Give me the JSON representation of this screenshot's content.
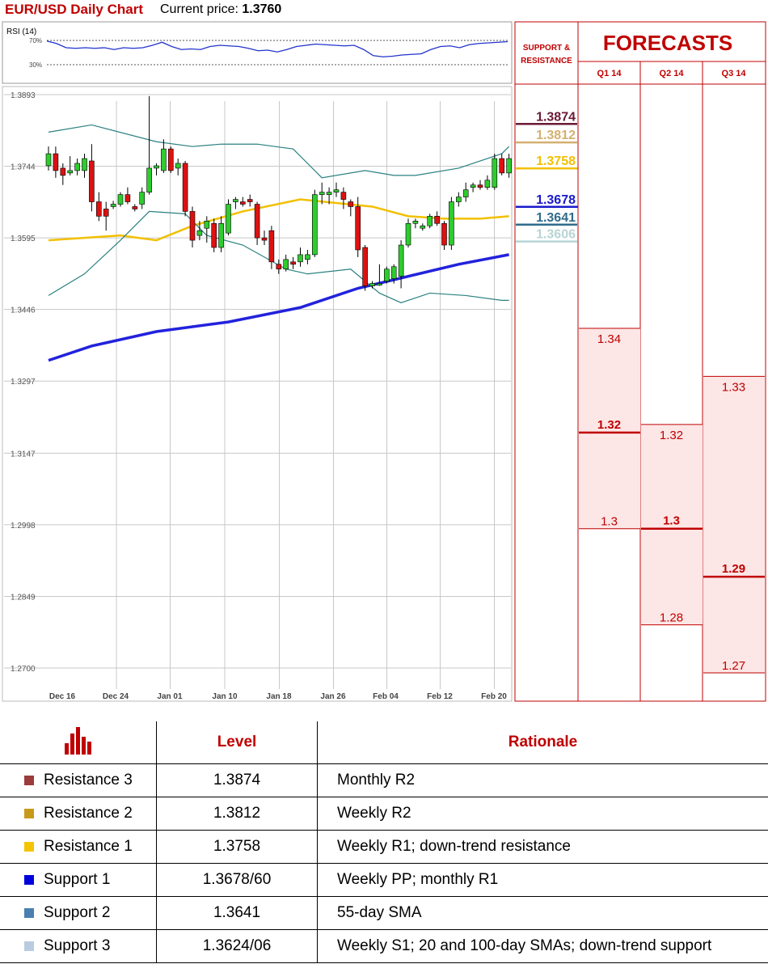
{
  "header": {
    "title": "EUR/USD Daily Chart",
    "price_label": "Current price:",
    "price_value": "1.3760"
  },
  "rsi": {
    "label": "RSI (14)",
    "levels": [
      "70%",
      "30%"
    ],
    "values": [
      69,
      65,
      58,
      57,
      58,
      57,
      58,
      55,
      58,
      57,
      58,
      62,
      67,
      60,
      55,
      56,
      55,
      60,
      62,
      61,
      60,
      57,
      53,
      54,
      51,
      55,
      60,
      62,
      64,
      63,
      62,
      61,
      62,
      55,
      45,
      43,
      44,
      46,
      47,
      48,
      55,
      60,
      61,
      58,
      63,
      65,
      66,
      67,
      68
    ]
  },
  "chart_data": {
    "type": "candlestick",
    "x_labels": [
      "Dec 16",
      "Dec 24",
      "Jan 01",
      "Jan 10",
      "Jan 18",
      "Jan 26",
      "Feb 04",
      "Feb 12",
      "Feb 20"
    ],
    "y_ticks": [
      "1.3893",
      "1.3744",
      "1.3595",
      "1.3446",
      "1.3297",
      "1.3147",
      "1.2998",
      "1.2849",
      "1.2700"
    ],
    "ylim": [
      1.2685,
      1.3898
    ],
    "candles": [
      {
        "o": 1.3745,
        "h": 1.3785,
        "l": 1.3735,
        "c": 1.377
      },
      {
        "o": 1.377,
        "h": 1.3785,
        "l": 1.372,
        "c": 1.3735
      },
      {
        "o": 1.374,
        "h": 1.375,
        "l": 1.3705,
        "c": 1.3725
      },
      {
        "o": 1.373,
        "h": 1.3765,
        "l": 1.3725,
        "c": 1.3735
      },
      {
        "o": 1.3735,
        "h": 1.376,
        "l": 1.3725,
        "c": 1.375
      },
      {
        "o": 1.3735,
        "h": 1.377,
        "l": 1.372,
        "c": 1.376
      },
      {
        "o": 1.3755,
        "h": 1.379,
        "l": 1.365,
        "c": 1.367
      },
      {
        "o": 1.367,
        "h": 1.369,
        "l": 1.363,
        "c": 1.364
      },
      {
        "o": 1.3655,
        "h": 1.367,
        "l": 1.361,
        "c": 1.364
      },
      {
        "o": 1.366,
        "h": 1.3672,
        "l": 1.3655,
        "c": 1.3665
      },
      {
        "o": 1.3665,
        "h": 1.369,
        "l": 1.366,
        "c": 1.3685
      },
      {
        "o": 1.3685,
        "h": 1.37,
        "l": 1.3665,
        "c": 1.367
      },
      {
        "o": 1.366,
        "h": 1.3665,
        "l": 1.365,
        "c": 1.3655
      },
      {
        "o": 1.3665,
        "h": 1.37,
        "l": 1.3655,
        "c": 1.369
      },
      {
        "o": 1.369,
        "h": 1.389,
        "l": 1.3685,
        "c": 1.374
      },
      {
        "o": 1.374,
        "h": 1.375,
        "l": 1.3725,
        "c": 1.3745
      },
      {
        "o": 1.3735,
        "h": 1.38,
        "l": 1.373,
        "c": 1.378
      },
      {
        "o": 1.378,
        "h": 1.3785,
        "l": 1.373,
        "c": 1.3735
      },
      {
        "o": 1.374,
        "h": 1.376,
        "l": 1.3725,
        "c": 1.375
      },
      {
        "o": 1.375,
        "h": 1.3755,
        "l": 1.364,
        "c": 1.365
      },
      {
        "o": 1.365,
        "h": 1.366,
        "l": 1.3575,
        "c": 1.359
      },
      {
        "o": 1.36,
        "h": 1.363,
        "l": 1.359,
        "c": 1.361
      },
      {
        "o": 1.3615,
        "h": 1.364,
        "l": 1.3585,
        "c": 1.363
      },
      {
        "o": 1.3625,
        "h": 1.3635,
        "l": 1.3565,
        "c": 1.3575
      },
      {
        "o": 1.3575,
        "h": 1.364,
        "l": 1.3565,
        "c": 1.3625
      },
      {
        "o": 1.3605,
        "h": 1.3675,
        "l": 1.36,
        "c": 1.3665
      },
      {
        "o": 1.367,
        "h": 1.368,
        "l": 1.3655,
        "c": 1.3675
      },
      {
        "o": 1.367,
        "h": 1.368,
        "l": 1.366,
        "c": 1.3665
      },
      {
        "o": 1.3675,
        "h": 1.3685,
        "l": 1.366,
        "c": 1.367
      },
      {
        "o": 1.3665,
        "h": 1.367,
        "l": 1.358,
        "c": 1.3595
      },
      {
        "o": 1.3595,
        "h": 1.361,
        "l": 1.358,
        "c": 1.359
      },
      {
        "o": 1.361,
        "h": 1.362,
        "l": 1.353,
        "c": 1.3545
      },
      {
        "o": 1.354,
        "h": 1.355,
        "l": 1.352,
        "c": 1.353
      },
      {
        "o": 1.353,
        "h": 1.356,
        "l": 1.3525,
        "c": 1.355
      },
      {
        "o": 1.3545,
        "h": 1.3555,
        "l": 1.353,
        "c": 1.354
      },
      {
        "o": 1.3545,
        "h": 1.3575,
        "l": 1.3535,
        "c": 1.356
      },
      {
        "o": 1.355,
        "h": 1.357,
        "l": 1.354,
        "c": 1.356
      },
      {
        "o": 1.356,
        "h": 1.3695,
        "l": 1.3555,
        "c": 1.3685
      },
      {
        "o": 1.3685,
        "h": 1.371,
        "l": 1.3665,
        "c": 1.369
      },
      {
        "o": 1.3685,
        "h": 1.37,
        "l": 1.3665,
        "c": 1.369
      },
      {
        "o": 1.369,
        "h": 1.371,
        "l": 1.368,
        "c": 1.3695
      },
      {
        "o": 1.369,
        "h": 1.37,
        "l": 1.3655,
        "c": 1.3675
      },
      {
        "o": 1.367,
        "h": 1.3675,
        "l": 1.364,
        "c": 1.366
      },
      {
        "o": 1.366,
        "h": 1.368,
        "l": 1.3555,
        "c": 1.357
      },
      {
        "o": 1.3575,
        "h": 1.358,
        "l": 1.3485,
        "c": 1.3495
      },
      {
        "o": 1.3495,
        "h": 1.3505,
        "l": 1.349,
        "c": 1.35
      },
      {
        "o": 1.35,
        "h": 1.354,
        "l": 1.3495,
        "c": 1.35
      },
      {
        "o": 1.3505,
        "h": 1.3535,
        "l": 1.35,
        "c": 1.353
      },
      {
        "o": 1.351,
        "h": 1.354,
        "l": 1.35,
        "c": 1.3535
      },
      {
        "o": 1.3515,
        "h": 1.359,
        "l": 1.349,
        "c": 1.358
      },
      {
        "o": 1.358,
        "h": 1.3635,
        "l": 1.3575,
        "c": 1.3625
      },
      {
        "o": 1.3625,
        "h": 1.3635,
        "l": 1.3615,
        "c": 1.363
      },
      {
        "o": 1.3615,
        "h": 1.3625,
        "l": 1.361,
        "c": 1.362
      },
      {
        "o": 1.362,
        "h": 1.3645,
        "l": 1.3615,
        "c": 1.364
      },
      {
        "o": 1.364,
        "h": 1.365,
        "l": 1.362,
        "c": 1.3625
      },
      {
        "o": 1.3625,
        "h": 1.363,
        "l": 1.357,
        "c": 1.358
      },
      {
        "o": 1.358,
        "h": 1.368,
        "l": 1.357,
        "c": 1.367
      },
      {
        "o": 1.367,
        "h": 1.369,
        "l": 1.366,
        "c": 1.368
      },
      {
        "o": 1.368,
        "h": 1.371,
        "l": 1.367,
        "c": 1.3695
      },
      {
        "o": 1.37,
        "h": 1.371,
        "l": 1.369,
        "c": 1.3705
      },
      {
        "o": 1.3705,
        "h": 1.3715,
        "l": 1.3695,
        "c": 1.37
      },
      {
        "o": 1.37,
        "h": 1.3725,
        "l": 1.3695,
        "c": 1.3715
      },
      {
        "o": 1.37,
        "h": 1.377,
        "l": 1.3695,
        "c": 1.376
      },
      {
        "o": 1.376,
        "h": 1.377,
        "l": 1.3725,
        "c": 1.373
      },
      {
        "o": 1.373,
        "h": 1.377,
        "l": 1.372,
        "c": 1.376
      }
    ],
    "series": [
      {
        "name": "",
        "color": "#f2c000",
        "x": [
          0,
          10,
          15,
          20,
          27,
          35,
          45,
          50,
          55,
          60,
          64
        ],
        "y": [
          1.359,
          1.36,
          1.359,
          1.362,
          1.365,
          1.3675,
          1.366,
          1.364,
          1.3635,
          1.3635,
          1.364
        ]
      },
      {
        "name": "",
        "color": "#2222dd",
        "x": [
          0,
          6,
          15,
          25,
          35,
          43,
          50,
          57,
          64
        ],
        "y": [
          1.334,
          1.337,
          1.34,
          1.342,
          1.345,
          1.349,
          1.3515,
          1.354,
          1.356
        ]
      },
      {
        "name": "",
        "color": "#2a8080",
        "x": [
          0,
          6,
          15,
          20,
          24,
          29,
          34,
          38,
          44,
          48,
          51,
          57,
          63,
          64
        ],
        "y": [
          1.3815,
          1.383,
          1.3795,
          1.3785,
          1.379,
          1.379,
          1.378,
          1.372,
          1.3735,
          1.3725,
          1.3725,
          1.374,
          1.377,
          1.3785
        ]
      },
      {
        "name": "",
        "color": "#2a8080",
        "x": [
          0,
          5,
          10,
          14,
          19,
          22,
          27,
          33,
          36,
          42,
          46,
          49,
          53,
          58,
          63,
          64
        ],
        "y": [
          1.3475,
          1.352,
          1.359,
          1.365,
          1.3645,
          1.36,
          1.358,
          1.353,
          1.352,
          1.353,
          1.348,
          1.346,
          1.348,
          1.3475,
          1.3465,
          1.3465
        ]
      }
    ]
  },
  "levels_column": {
    "header": "SUPPORT & RESISTANCE",
    "levels": [
      {
        "value": "1.3874",
        "color": "#6b1a36"
      },
      {
        "value": "1.3812",
        "color": "#d4b070"
      },
      {
        "value": "1.3758",
        "color": "#f2c000"
      },
      {
        "value": "1.3678",
        "color": "#1a1acc"
      },
      {
        "value": "1.3641",
        "color": "#2f6c8c"
      },
      {
        "value": "1.3606",
        "color": "#b8d4d4"
      }
    ]
  },
  "forecasts": {
    "title": "FORECASTS",
    "columns": [
      {
        "label": "Q1 14",
        "high": "1.34",
        "mid": "1.32",
        "low": "1.3",
        "bold": "mid"
      },
      {
        "label": "Q2 14",
        "high": "1.32",
        "mid": "1.3",
        "low": "1.28",
        "bold": "mid"
      },
      {
        "label": "Q3 14",
        "high": "1.33",
        "mid": "1.29",
        "low": "1.27",
        "bold": "mid"
      }
    ]
  },
  "table": {
    "col_level": "Level",
    "col_rationale": "Rationale",
    "rows": [
      {
        "name": "Resistance 3",
        "color": "#9b3b3b",
        "level": "1.3874",
        "rationale": "Monthly R2"
      },
      {
        "name": "Resistance 2",
        "color": "#c89a1a",
        "level": "1.3812",
        "rationale": "Weekly R2"
      },
      {
        "name": "Resistance 1",
        "color": "#f5c400",
        "level": "1.3758",
        "rationale": "Weekly R1; down-trend resistance"
      },
      {
        "name": "Support 1",
        "color": "#0000dd",
        "level": "1.3678/60",
        "rationale": "Weekly PP; monthly R1"
      },
      {
        "name": "Support 2",
        "color": "#4a7fb0",
        "level": "1.3641",
        "rationale": "55-day SMA"
      },
      {
        "name": "Support 3",
        "color": "#b8cbe0",
        "level": "1.3624/06",
        "rationale": "Weekly S1; 20 and 100-day SMAs; down-trend support"
      }
    ]
  }
}
